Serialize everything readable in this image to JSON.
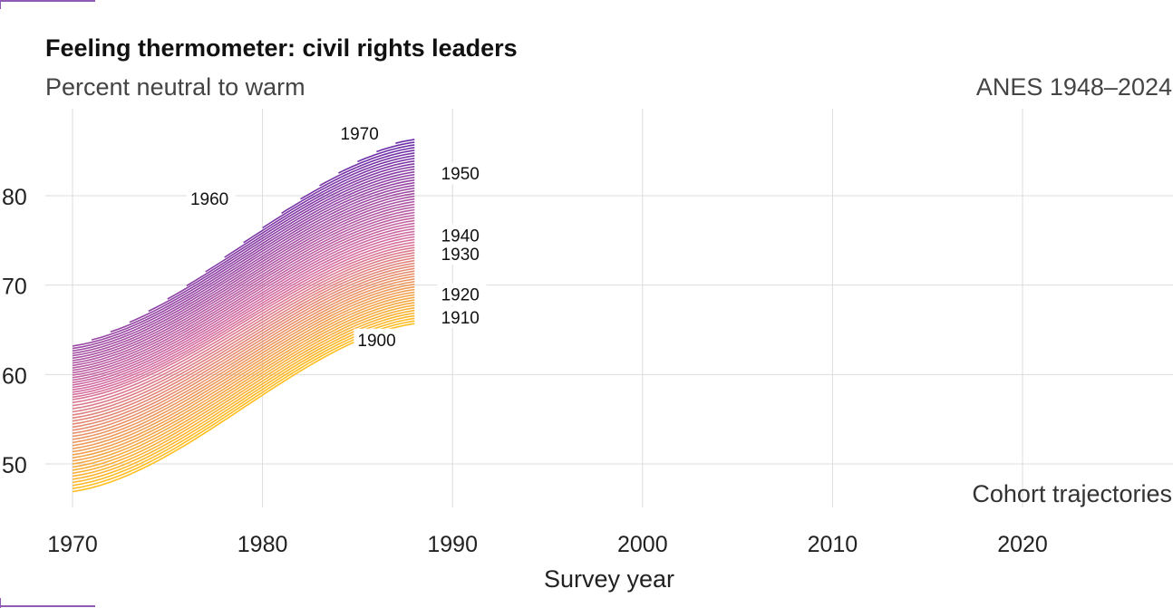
{
  "colors": {
    "oldest_cohort": "#ffbe1f",
    "middle_cohort": "#d56da0",
    "youngest_cohort": "#5a22a8",
    "grid": "#dddddd"
  },
  "chart_data": {
    "type": "line",
    "title": "Feeling thermometer: civil rights leaders",
    "subtitle": "Percent neutral to warm",
    "source": "ANES 1948–2024",
    "annotation": "Cohort trajectories",
    "xlabel": "Survey year",
    "ylabel": "",
    "xlim": [
      1970,
      2028
    ],
    "ylim": [
      45.5,
      88.5
    ],
    "x_ticks": [
      1970,
      1980,
      1990,
      2000,
      2010,
      2020
    ],
    "y_ticks": [
      50,
      60,
      70,
      80
    ],
    "grid": true,
    "legend": "none",
    "cohort_labels": [
      {
        "text": "1970",
        "x": 1984.1,
        "y": 86.3
      },
      {
        "text": "1960",
        "x": 1976.2,
        "y": 79.0
      },
      {
        "text": "1950",
        "x": 1989.4,
        "y": 81.8
      },
      {
        "text": "1940",
        "x": 1989.4,
        "y": 74.9
      },
      {
        "text": "1930",
        "x": 1989.4,
        "y": 72.8
      },
      {
        "text": "1920",
        "x": 1989.4,
        "y": 68.3
      },
      {
        "text": "1910",
        "x": 1989.4,
        "y": 65.7
      },
      {
        "text": "1900",
        "x": 1985.0,
        "y": 63.2
      }
    ],
    "cohort_years": {
      "first": 1900,
      "last": 1973
    },
    "series_shape": {
      "x_end": 1988,
      "oldest_start": 46.9,
      "oldest_end": 65.7,
      "kink_cohort": 1930,
      "kink_start": 57.2,
      "kink_end": 74.5,
      "youngest_start": 68.9,
      "youngest_end": 87.5
    }
  }
}
